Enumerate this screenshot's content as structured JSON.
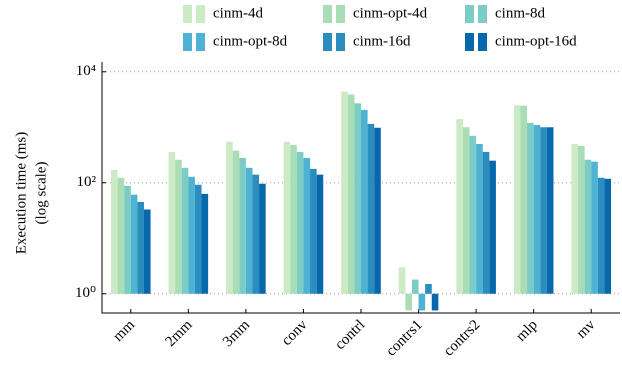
{
  "chart_data": {
    "type": "bar",
    "log_y": true,
    "grid": true,
    "legend": "top",
    "ylabel": [
      "Execution time (ms)",
      "(log scale)"
    ],
    "categories": [
      "mm",
      "2mm",
      "3mm",
      "conv",
      "contrl",
      "contrs1",
      "contrs2",
      "mlp",
      "mv"
    ],
    "series": [
      {
        "name": "cinm-4d",
        "color": "#ccebc5",
        "values": [
          170,
          360,
          550,
          550,
          4400,
          3,
          1400,
          2500,
          500
        ]
      },
      {
        "name": "cinm-opt-4d",
        "color": "#a8ddb5",
        "values": [
          123,
          260,
          380,
          480,
          3900,
          0.5,
          1000,
          2450,
          460
        ]
      },
      {
        "name": "cinm-8d",
        "color": "#7bccc4",
        "values": [
          88,
          186,
          280,
          360,
          2700,
          1.8,
          700,
          1200,
          260
        ]
      },
      {
        "name": "cinm-opt-8d",
        "color": "#4eb3d3",
        "values": [
          61,
          128,
          186,
          280,
          2050,
          0.5,
          500,
          1100,
          240
        ]
      },
      {
        "name": "cinm-16d",
        "color": "#2b8cbe",
        "values": [
          45,
          92,
          140,
          178,
          1150,
          1.5,
          360,
          1000,
          123
        ]
      },
      {
        "name": "cinm-opt-16d",
        "color": "#0868ac",
        "values": [
          33,
          63,
          96,
          140,
          980,
          0.5,
          250,
          1000,
          118
        ]
      }
    ],
    "ylim": [
      0.45,
      15000
    ],
    "yticks": [
      {
        "value": 1,
        "label": "10⁰"
      },
      {
        "value": 100,
        "label": "10²"
      },
      {
        "value": 10000,
        "label": "10⁴"
      }
    ]
  }
}
